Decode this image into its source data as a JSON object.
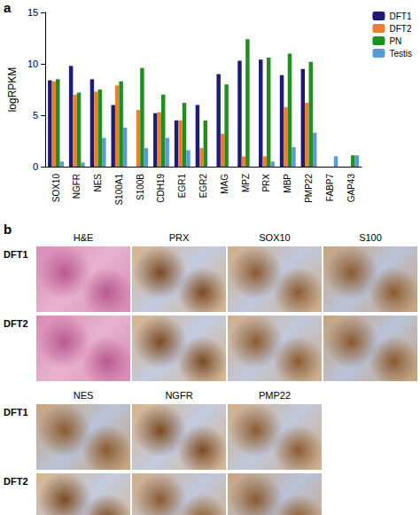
{
  "chart_data": {
    "type": "bar",
    "y_label": "logRPKM",
    "categories": [
      "SOX10",
      "NGFR",
      "NES",
      "S100A1",
      "S100B",
      "CDH19",
      "EGR1",
      "EGR2",
      "MAG",
      "MPZ",
      "PRX",
      "MBP",
      "PMP22",
      "FABP7",
      "GAP43"
    ],
    "series": [
      {
        "name": "DFT1",
        "color": "#1c1c78",
        "values": [
          8.4,
          9.8,
          8.5,
          6.0,
          0,
          5.2,
          4.5,
          6.0,
          9.0,
          10.3,
          10.4,
          8.9,
          9.5,
          0,
          0
        ]
      },
      {
        "name": "DFT2",
        "color": "#ed7d31",
        "values": [
          8.3,
          7.0,
          7.3,
          7.9,
          5.5,
          5.3,
          4.5,
          1.8,
          3.2,
          1.0,
          1.0,
          5.8,
          6.2,
          0,
          0
        ]
      },
      {
        "name": "PN",
        "color": "#1f8f1f",
        "values": [
          8.5,
          7.2,
          7.5,
          8.3,
          9.6,
          7.0,
          6.2,
          4.5,
          8.0,
          12.4,
          10.6,
          11.0,
          10.2,
          0,
          1.1
        ]
      },
      {
        "name": "Testis",
        "color": "#5b9bd5",
        "values": [
          0.5,
          0.4,
          2.8,
          3.8,
          1.8,
          2.8,
          1.6,
          0,
          0,
          0,
          0.5,
          1.9,
          3.3,
          1.0,
          1.1
        ]
      }
    ],
    "ylim": [
      0,
      15
    ],
    "yticks": [
      0,
      5,
      10,
      15
    ],
    "grid": false,
    "legend": "upper right"
  },
  "panel_labels": [
    "a",
    "b"
  ],
  "micrographs": {
    "blocks": [
      {
        "columns": [
          "H&E",
          "PRX",
          "SOX10",
          "S100"
        ],
        "rows": [
          "DFT1",
          "DFT2"
        ]
      },
      {
        "columns": [
          "NES",
          "NGFR",
          "PMP22"
        ],
        "rows": [
          "DFT1",
          "DFT2"
        ]
      }
    ]
  }
}
